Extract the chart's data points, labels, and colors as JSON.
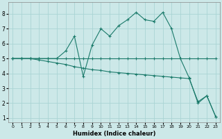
{
  "xlabel": "Humidex (Indice chaleur)",
  "background_color": "#cce8e8",
  "line_color": "#1a7a6a",
  "grid_color": "#aad4d4",
  "xlim": [
    -0.5,
    23.5
  ],
  "ylim": [
    0.7,
    8.8
  ],
  "xticks": [
    0,
    1,
    2,
    3,
    4,
    5,
    6,
    7,
    8,
    9,
    10,
    11,
    12,
    13,
    14,
    15,
    16,
    17,
    18,
    19,
    20,
    21,
    22,
    23
  ],
  "yticks": [
    1,
    2,
    3,
    4,
    5,
    6,
    7,
    8
  ],
  "line1_x": [
    0,
    1,
    2,
    3,
    4,
    5,
    6,
    7,
    8,
    9,
    10,
    11,
    12,
    13,
    14,
    15,
    16,
    17,
    18,
    19,
    20,
    21,
    22,
    23
  ],
  "line1_y": [
    5.0,
    5.0,
    5.0,
    5.0,
    5.0,
    5.0,
    5.0,
    5.0,
    5.0,
    5.0,
    5.0,
    5.0,
    5.0,
    5.0,
    5.0,
    5.0,
    5.0,
    5.0,
    5.0,
    5.0,
    5.0,
    5.0,
    5.0,
    5.0
  ],
  "line2_x": [
    0,
    1,
    2,
    3,
    4,
    5,
    6,
    7,
    8,
    9,
    10,
    11,
    12,
    13,
    14,
    15,
    16,
    17,
    18,
    19,
    20,
    21,
    22,
    23
  ],
  "line2_y": [
    5.0,
    5.0,
    5.0,
    4.9,
    4.8,
    4.7,
    4.6,
    4.45,
    4.35,
    4.25,
    4.2,
    4.1,
    4.05,
    4.0,
    3.95,
    3.9,
    3.85,
    3.8,
    3.75,
    3.7,
    3.65,
    2.1,
    2.5,
    1.1
  ],
  "line3_x": [
    0,
    1,
    2,
    3,
    4,
    5,
    6,
    7,
    8,
    9,
    10,
    11,
    12,
    13,
    14,
    15,
    16,
    17,
    18,
    19,
    20,
    21,
    22,
    23
  ],
  "line3_y": [
    5.0,
    5.0,
    5.0,
    5.0,
    5.0,
    5.0,
    5.5,
    6.5,
    3.8,
    5.9,
    7.0,
    6.5,
    7.2,
    7.6,
    8.1,
    7.6,
    7.5,
    8.1,
    7.0,
    5.0,
    3.7,
    2.0,
    2.5,
    1.1
  ]
}
